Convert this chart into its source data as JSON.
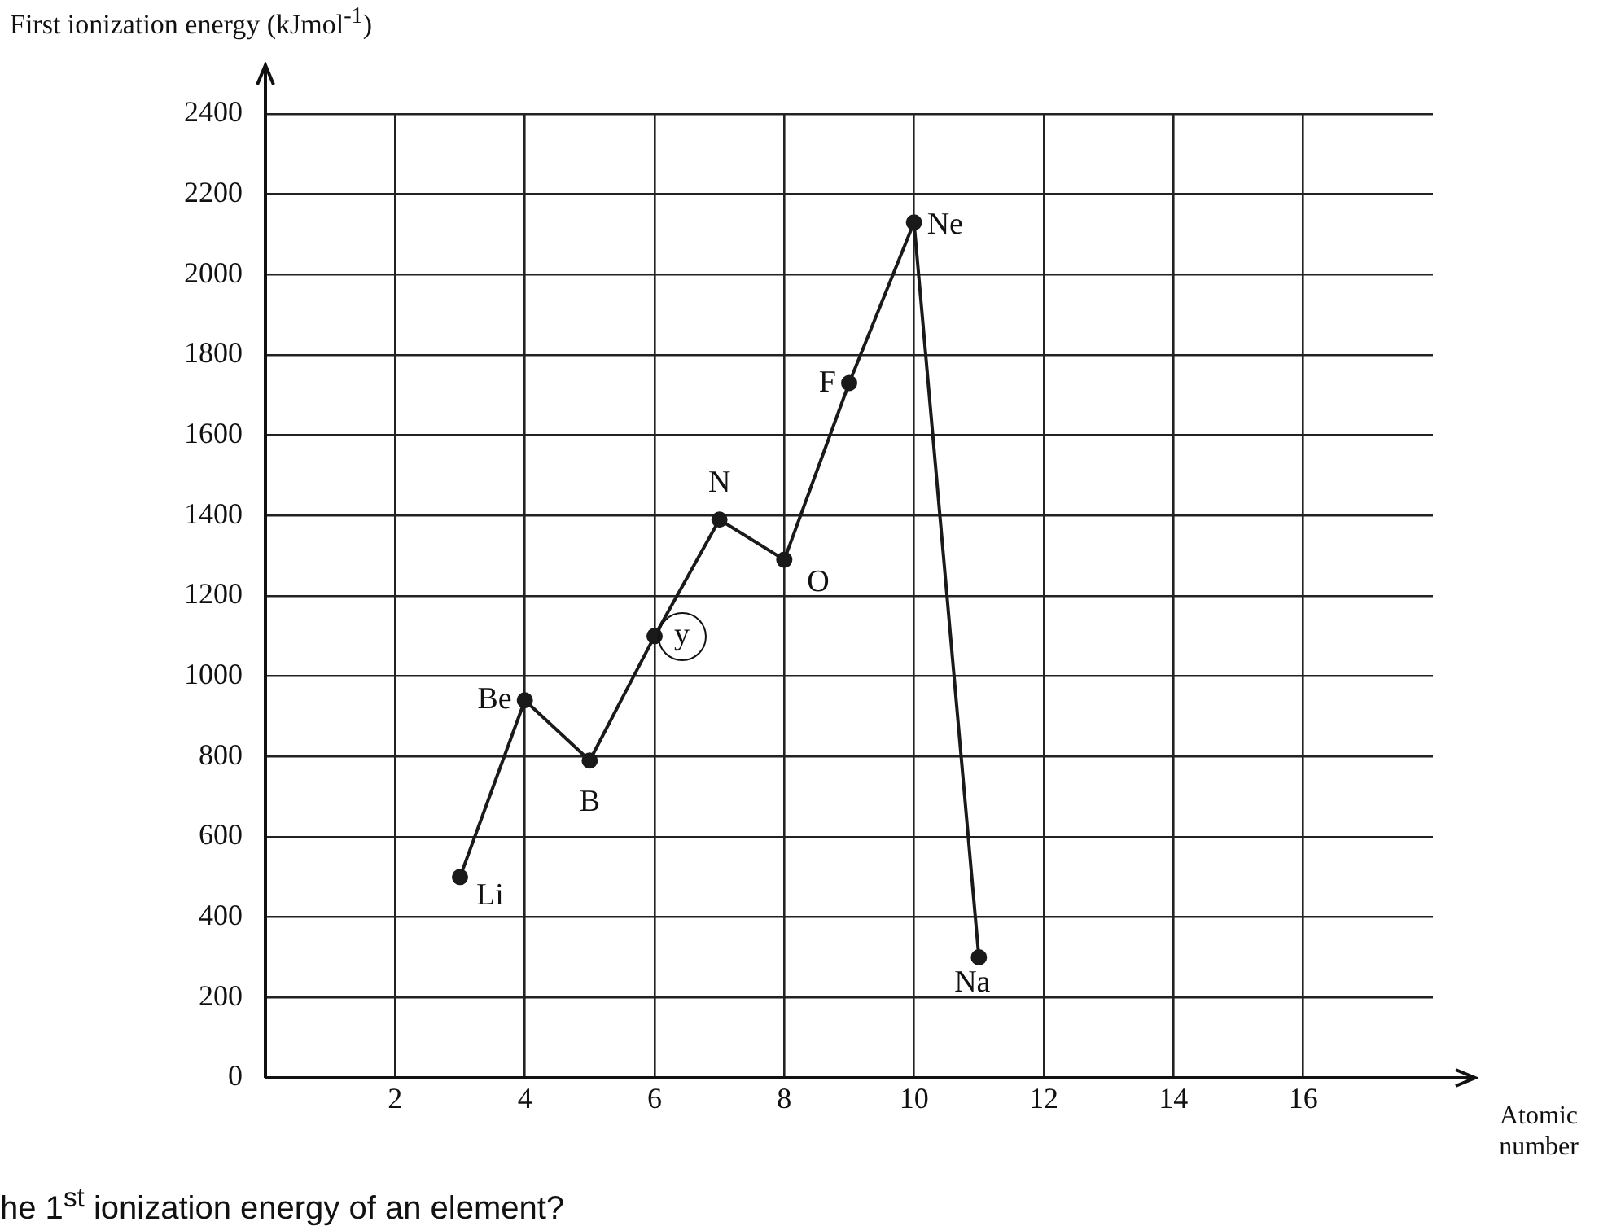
{
  "chart_data": {
    "type": "line",
    "ylabel": "First ionization energy (kJmol$^{-1}$)",
    "xlabel": "Atomic number",
    "x": [
      3,
      4,
      5,
      6,
      7,
      8,
      9,
      10,
      11
    ],
    "series": [
      {
        "color": "#1a1a1a",
        "values": [
          500,
          940,
          790,
          1100,
          1390,
          1290,
          1730,
          2130,
          300
        ]
      }
    ],
    "xlim": [
      0,
      18
    ],
    "xticks": [
      2,
      4,
      6,
      8,
      10,
      12,
      14,
      16
    ],
    "ylim": [
      0,
      2400
    ],
    "yticks": [
      0,
      200,
      400,
      600,
      800,
      1000,
      1200,
      1400,
      1600,
      1800,
      2000,
      2200,
      2400
    ],
    "grid": true,
    "legend": false,
    "marker": "circle",
    "line_style": "solid",
    "annotations": [
      {
        "text": "Li",
        "x": 3,
        "y": 500
      },
      {
        "text": "Be",
        "x": 4,
        "y": 940
      },
      {
        "text": "B",
        "x": 5,
        "y": 790
      },
      {
        "text": "y",
        "x": 6,
        "y": 1100
      },
      {
        "text": "N",
        "x": 7,
        "y": 1390
      },
      {
        "text": "O",
        "x": 8,
        "y": 1290
      },
      {
        "text": "F",
        "x": 9,
        "y": 1730
      },
      {
        "text": "Ne",
        "x": 10,
        "y": 2130
      },
      {
        "text": "Na",
        "x": 11,
        "y": 300
      },
      "he 1$^{st}$ ionization energy of an element?"
    ]
  }
}
